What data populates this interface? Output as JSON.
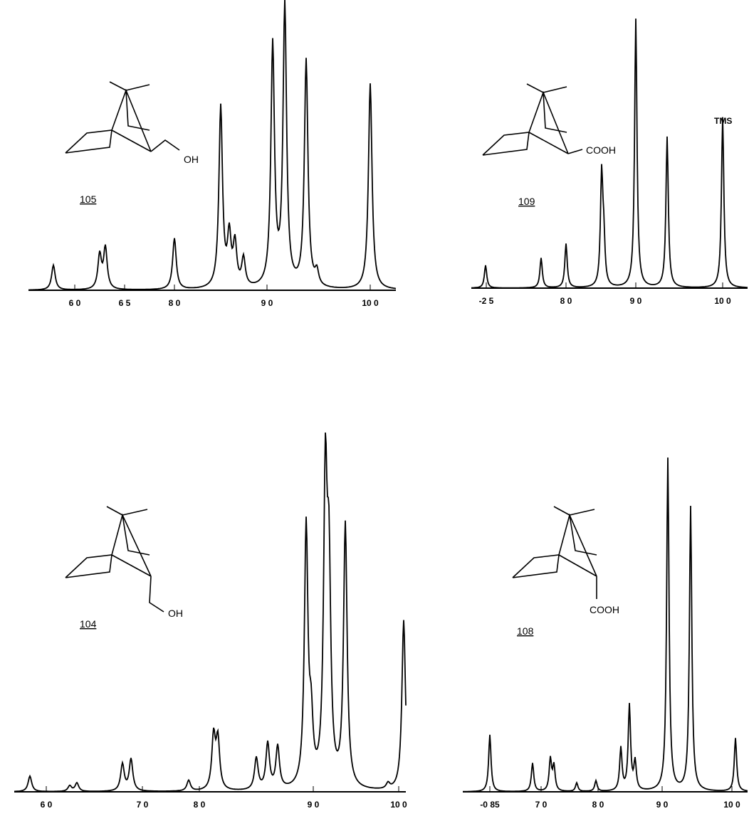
{
  "panels": [
    {
      "compound": "105",
      "group": "OH",
      "ticks": [
        "6 0",
        "6 5",
        "8 0",
        "9 0",
        "10 0"
      ]
    },
    {
      "compound": "109",
      "group": "COOH",
      "reference": "TMS",
      "ticks": [
        "-2 5",
        "8 0",
        "9 0",
        "10 0"
      ]
    },
    {
      "compound": "104",
      "group": "OH",
      "ticks": [
        "6 0",
        "7 0",
        "8 0",
        "9 0",
        "10 0"
      ]
    },
    {
      "compound": "108",
      "group": "COOH",
      "ticks": [
        "-0 85",
        "7 0",
        "8 0",
        "9 0",
        "10 0"
      ]
    }
  ]
}
